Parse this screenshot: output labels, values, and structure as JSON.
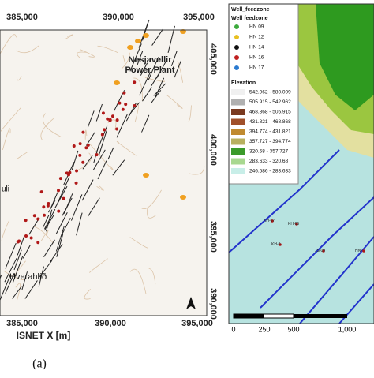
{
  "left_map": {
    "top_ticks": [
      "385,000",
      "390,000",
      "395,000"
    ],
    "right_ticks": [
      "405,000",
      "400,000",
      "395,000",
      "390,000"
    ],
    "bottom_ticks": [
      "385,000",
      "390,000",
      "395,000"
    ],
    "x_axis_label": "ISNET X [m]",
    "places": [
      "Nesjavellir Power Plant",
      "Hverahlíð",
      "uli"
    ],
    "caption": "(a)"
  },
  "right_map": {
    "legend_title": "Well_feedzone",
    "legend_subtitle": "Well feedzone",
    "wells": [
      "HN 09",
      "HN 12",
      "HN 14",
      "HN 16",
      "HN 17"
    ],
    "elevation_title": "Elevation",
    "elevation_classes": [
      "542.962 - 580.009",
      "505.915 - 542.962",
      "468.868 - 505.915",
      "431.821 - 468.868",
      "394.774 - 431.821",
      "357.727 - 394.774",
      "320.68 - 357.727",
      "283.633 - 320.68",
      "246.586 - 283.633"
    ],
    "well_labels": [
      "KH-07",
      "KH-05",
      "KH-0",
      "JS-09",
      "HN-"
    ],
    "scale_labels": [
      "0",
      "250",
      "500",
      "1,000"
    ]
  }
}
